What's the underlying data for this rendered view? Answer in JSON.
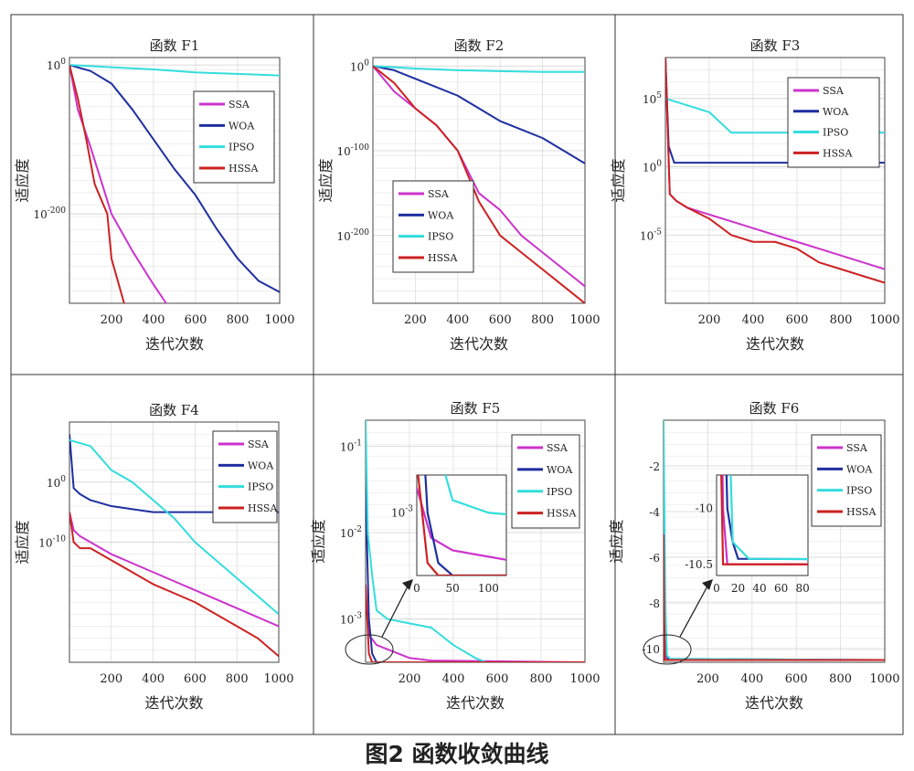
{
  "caption": "图2  函数收敛曲线",
  "colors": {
    "SSA": "#cc33cc",
    "WOA": "#1f2fa0",
    "IPSO": "#33dddd",
    "HSSA": "#cc2222"
  },
  "chart_data": [
    {
      "type": "line",
      "title": "函数 F1",
      "xlabel": "迭代次数",
      "ylabel": "适应度",
      "xlim": [
        0,
        1000
      ],
      "log_y": true,
      "ylim_exp": [
        -320,
        10
      ],
      "xticks": [
        200,
        400,
        600,
        800,
        1000
      ],
      "yticks": [
        {
          "v": 0,
          "label": "10^0"
        },
        {
          "v": -200,
          "label": "10^-200"
        }
      ],
      "legend": {
        "position": "top-right"
      },
      "series": [
        {
          "name": "SSA",
          "points": [
            [
              0,
              0
            ],
            [
              40,
              -60
            ],
            [
              100,
              -110
            ],
            [
              200,
              -200
            ],
            [
              300,
              -250
            ],
            [
              400,
              -295
            ],
            [
              460,
              -320
            ]
          ]
        },
        {
          "name": "WOA",
          "points": [
            [
              0,
              0
            ],
            [
              100,
              -8
            ],
            [
              200,
              -25
            ],
            [
              300,
              -60
            ],
            [
              400,
              -100
            ],
            [
              500,
              -140
            ],
            [
              600,
              -175
            ],
            [
              700,
              -220
            ],
            [
              800,
              -260
            ],
            [
              900,
              -290
            ],
            [
              1000,
              -305
            ]
          ]
        },
        {
          "name": "IPSO",
          "points": [
            [
              0,
              0
            ],
            [
              200,
              -3
            ],
            [
              400,
              -6
            ],
            [
              600,
              -10
            ],
            [
              800,
              -12
            ],
            [
              1000,
              -14
            ]
          ]
        },
        {
          "name": "HSSA",
          "points": [
            [
              0,
              0
            ],
            [
              40,
              -45
            ],
            [
              80,
              -100
            ],
            [
              120,
              -160
            ],
            [
              180,
              -200
            ],
            [
              200,
              -260
            ],
            [
              230,
              -290
            ],
            [
              260,
              -320
            ]
          ]
        }
      ]
    },
    {
      "type": "line",
      "title": "函数 F2",
      "xlabel": "迭代次数",
      "ylabel": "适应度",
      "xlim": [
        0,
        1000
      ],
      "log_y": true,
      "ylim_exp": [
        -280,
        10
      ],
      "xticks": [
        200,
        400,
        600,
        800,
        1000
      ],
      "yticks": [
        {
          "v": 0,
          "label": "10^0"
        },
        {
          "v": -100,
          "label": "10^-100"
        },
        {
          "v": -200,
          "label": "10^-200"
        }
      ],
      "legend": {
        "position": "lower-left"
      },
      "series": [
        {
          "name": "SSA",
          "points": [
            [
              0,
              0
            ],
            [
              100,
              -30
            ],
            [
              200,
              -50
            ],
            [
              300,
              -70
            ],
            [
              400,
              -100
            ],
            [
              500,
              -150
            ],
            [
              600,
              -170
            ],
            [
              700,
              -200
            ],
            [
              800,
              -220
            ],
            [
              900,
              -240
            ],
            [
              1000,
              -260
            ]
          ]
        },
        {
          "name": "WOA",
          "points": [
            [
              0,
              0
            ],
            [
              100,
              -5
            ],
            [
              200,
              -15
            ],
            [
              300,
              -25
            ],
            [
              400,
              -35
            ],
            [
              500,
              -50
            ],
            [
              600,
              -65
            ],
            [
              700,
              -75
            ],
            [
              800,
              -85
            ],
            [
              900,
              -100
            ],
            [
              1000,
              -115
            ]
          ]
        },
        {
          "name": "IPSO",
          "points": [
            [
              0,
              0
            ],
            [
              200,
              -3
            ],
            [
              400,
              -5
            ],
            [
              600,
              -6
            ],
            [
              800,
              -7
            ],
            [
              1000,
              -7
            ]
          ]
        },
        {
          "name": "HSSA",
          "points": [
            [
              0,
              0
            ],
            [
              100,
              -20
            ],
            [
              200,
              -50
            ],
            [
              300,
              -70
            ],
            [
              400,
              -100
            ],
            [
              500,
              -160
            ],
            [
              600,
              -200
            ],
            [
              700,
              -220
            ],
            [
              800,
              -240
            ],
            [
              900,
              -260
            ],
            [
              1000,
              -280
            ]
          ]
        }
      ]
    },
    {
      "type": "line",
      "title": "函数 F3",
      "xlabel": "迭代次数",
      "ylabel": "适应度",
      "xlim": [
        0,
        1000
      ],
      "log_y": true,
      "ylim_exp": [
        -10,
        8
      ],
      "xticks": [
        200,
        400,
        600,
        800,
        1000
      ],
      "yticks": [
        {
          "v": 5,
          "label": "10^5"
        },
        {
          "v": 0,
          "label": "10^0"
        },
        {
          "v": -5,
          "label": "10^-5"
        }
      ],
      "legend": {
        "position": "top-right"
      },
      "series": [
        {
          "name": "SSA",
          "points": [
            [
              0,
              8
            ],
            [
              20,
              -2
            ],
            [
              50,
              -2.5
            ],
            [
              100,
              -3
            ],
            [
              200,
              -3.5
            ],
            [
              300,
              -4
            ],
            [
              400,
              -4.5
            ],
            [
              500,
              -5
            ],
            [
              600,
              -5.5
            ],
            [
              700,
              -6
            ],
            [
              800,
              -6.5
            ],
            [
              900,
              -7
            ],
            [
              1000,
              -7.5
            ]
          ]
        },
        {
          "name": "WOA",
          "points": [
            [
              0,
              8
            ],
            [
              15,
              1.5
            ],
            [
              40,
              0.3
            ],
            [
              100,
              0.3
            ],
            [
              500,
              0.3
            ],
            [
              1000,
              0.3
            ]
          ]
        },
        {
          "name": "IPSO",
          "points": [
            [
              0,
              5
            ],
            [
              100,
              4.5
            ],
            [
              200,
              4
            ],
            [
              300,
              2.5
            ],
            [
              500,
              2.5
            ],
            [
              1000,
              2.5
            ]
          ]
        },
        {
          "name": "HSSA",
          "points": [
            [
              0,
              8
            ],
            [
              20,
              -2
            ],
            [
              50,
              -2.5
            ],
            [
              100,
              -3
            ],
            [
              200,
              -3.8
            ],
            [
              300,
              -5
            ],
            [
              400,
              -5.5
            ],
            [
              500,
              -5.5
            ],
            [
              600,
              -6
            ],
            [
              700,
              -7
            ],
            [
              800,
              -7.5
            ],
            [
              900,
              -8
            ],
            [
              1000,
              -8.5
            ]
          ]
        }
      ]
    },
    {
      "type": "line",
      "title": "函数 F4",
      "xlabel": "迭代次数",
      "ylabel": "适应度",
      "xlim": [
        0,
        1000
      ],
      "log_y": true,
      "ylim_exp": [
        -30,
        10
      ],
      "xticks": [
        200,
        400,
        600,
        800,
        1000
      ],
      "yticks": [
        {
          "v": 0,
          "label": "10^0"
        },
        {
          "v": -10,
          "label": "10^-10"
        }
      ],
      "legend": {
        "position": "top-right"
      },
      "series": [
        {
          "name": "SSA",
          "points": [
            [
              0,
              -5
            ],
            [
              20,
              -8
            ],
            [
              50,
              -9
            ],
            [
              100,
              -10
            ],
            [
              200,
              -12
            ],
            [
              300,
              -13.5
            ],
            [
              400,
              -15
            ],
            [
              500,
              -16.5
            ],
            [
              600,
              -18
            ],
            [
              700,
              -19.5
            ],
            [
              800,
              -21
            ],
            [
              900,
              -22.5
            ],
            [
              1000,
              -24
            ]
          ]
        },
        {
          "name": "WOA",
          "points": [
            [
              0,
              8
            ],
            [
              20,
              -1
            ],
            [
              50,
              -2
            ],
            [
              100,
              -3
            ],
            [
              200,
              -4
            ],
            [
              300,
              -4.5
            ],
            [
              400,
              -5
            ],
            [
              500,
              -5
            ],
            [
              1000,
              -5
            ]
          ]
        },
        {
          "name": "IPSO",
          "points": [
            [
              0,
              7
            ],
            [
              50,
              6.5
            ],
            [
              100,
              6
            ],
            [
              200,
              2
            ],
            [
              300,
              0
            ],
            [
              400,
              -3
            ],
            [
              500,
              -6
            ],
            [
              600,
              -10
            ],
            [
              700,
              -13
            ],
            [
              800,
              -16
            ],
            [
              900,
              -19
            ],
            [
              1000,
              -22
            ]
          ]
        },
        {
          "name": "HSSA",
          "points": [
            [
              0,
              -5
            ],
            [
              20,
              -10
            ],
            [
              50,
              -11
            ],
            [
              100,
              -11
            ],
            [
              200,
              -13
            ],
            [
              300,
              -15
            ],
            [
              400,
              -17
            ],
            [
              500,
              -18.5
            ],
            [
              600,
              -20
            ],
            [
              700,
              -22
            ],
            [
              800,
              -24
            ],
            [
              900,
              -26
            ],
            [
              1000,
              -29
            ]
          ]
        }
      ]
    },
    {
      "type": "line",
      "title": "函数 F5",
      "xlabel": "迭代次数",
      "ylabel": "适应度",
      "xlim": [
        0,
        1000
      ],
      "log_y": true,
      "ylim_exp": [
        -3.5,
        -0.7
      ],
      "xticks": [
        200,
        400,
        600,
        800,
        1000
      ],
      "yticks": [
        {
          "v": -1,
          "label": "10^-1"
        },
        {
          "v": -2,
          "label": "10^-2"
        },
        {
          "v": -3,
          "label": "10^-3"
        }
      ],
      "legend": {
        "position": "top-right"
      },
      "series": [
        {
          "name": "SSA",
          "points": [
            [
              0,
              -2.8
            ],
            [
              20,
              -3.2
            ],
            [
              50,
              -3.3
            ],
            [
              100,
              -3.35
            ],
            [
              200,
              -3.45
            ],
            [
              300,
              -3.48
            ],
            [
              1000,
              -3.5
            ]
          ]
        },
        {
          "name": "WOA",
          "points": [
            [
              0,
              -1.5
            ],
            [
              15,
              -3
            ],
            [
              30,
              -3.4
            ],
            [
              50,
              -3.5
            ],
            [
              1000,
              -3.5
            ]
          ]
        },
        {
          "name": "IPSO",
          "points": [
            [
              0,
              -0.7
            ],
            [
              10,
              -2
            ],
            [
              30,
              -2.5
            ],
            [
              50,
              -2.9
            ],
            [
              100,
              -3
            ],
            [
              200,
              -3.05
            ],
            [
              300,
              -3.1
            ],
            [
              400,
              -3.3
            ],
            [
              500,
              -3.45
            ],
            [
              550,
              -3.5
            ],
            [
              1000,
              -3.5
            ]
          ]
        },
        {
          "name": "HSSA",
          "points": [
            [
              0,
              -2.6
            ],
            [
              15,
              -3.4
            ],
            [
              30,
              -3.5
            ],
            [
              1000,
              -3.5
            ]
          ]
        }
      ],
      "inset": {
        "xlim": [
          0,
          125
        ],
        "ylim_exp": [
          -3.5,
          -2.7
        ],
        "xticks": [
          0,
          50,
          100
        ],
        "yticks": [
          {
            "v": -3,
            "label": "10^-3"
          }
        ]
      }
    },
    {
      "type": "line",
      "title": "函数 F6",
      "xlabel": "迭代次数",
      "ylabel": "适应度",
      "xlim": [
        0,
        1000
      ],
      "ylim": [
        -10.6,
        0
      ],
      "xticks": [
        200,
        400,
        600,
        800,
        1000
      ],
      "yticks": [
        {
          "v": -2,
          "label": "-2"
        },
        {
          "v": -4,
          "label": "-4"
        },
        {
          "v": -6,
          "label": "-6"
        },
        {
          "v": -8,
          "label": "-8"
        },
        {
          "v": -10,
          "label": "-10"
        }
      ],
      "legend": {
        "position": "top-right"
      },
      "series": [
        {
          "name": "SSA",
          "points": [
            [
              0,
              -2
            ],
            [
              3,
              -8
            ],
            [
              6,
              -10
            ],
            [
              10,
              -10.5
            ],
            [
              1000,
              -10.5
            ]
          ]
        },
        {
          "name": "WOA",
          "points": [
            [
              0,
              -5
            ],
            [
              5,
              -8
            ],
            [
              10,
              -10
            ],
            [
              15,
              -10.3
            ],
            [
              20,
              -10.45
            ],
            [
              1000,
              -10.5
            ]
          ]
        },
        {
          "name": "IPSO",
          "points": [
            [
              0,
              0
            ],
            [
              4,
              -4
            ],
            [
              8,
              -8
            ],
            [
              15,
              -10.3
            ],
            [
              30,
              -10.45
            ],
            [
              1000,
              -10.5
            ]
          ]
        },
        {
          "name": "HSSA",
          "points": [
            [
              0,
              -5
            ],
            [
              3,
              -9
            ],
            [
              6,
              -10.5
            ],
            [
              1000,
              -10.5
            ]
          ]
        }
      ],
      "inset": {
        "xlim": [
          0,
          85
        ],
        "ylim": [
          -10.6,
          -9.7
        ],
        "xticks": [
          0,
          20,
          40,
          60,
          80
        ],
        "yticks": [
          {
            "v": -10,
            "label": "-10"
          },
          {
            "v": -10.5,
            "label": "-10.5"
          }
        ]
      }
    }
  ]
}
